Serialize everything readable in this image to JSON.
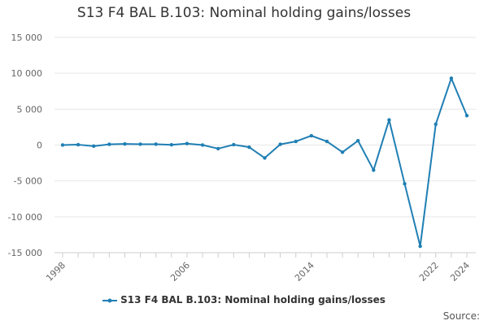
{
  "chart_data": {
    "type": "line",
    "title": "S13 F4 BAL B.103: Nominal holding gains/losses",
    "xlabel": "",
    "ylabel": "",
    "x": [
      1998,
      1999,
      2000,
      2001,
      2002,
      2003,
      2004,
      2005,
      2006,
      2007,
      2008,
      2009,
      2010,
      2011,
      2012,
      2013,
      2014,
      2015,
      2016,
      2017,
      2018,
      2019,
      2020,
      2021,
      2022,
      2023,
      2024
    ],
    "series": [
      {
        "name": "S13 F4 BAL B.103: Nominal holding gains/losses",
        "color": "#1f7fb4",
        "values": [
          0,
          50,
          -150,
          100,
          150,
          120,
          120,
          30,
          200,
          0,
          -500,
          50,
          -300,
          -1800,
          100,
          500,
          1300,
          500,
          -1000,
          600,
          -3500,
          3500,
          -5400,
          -14100,
          2900,
          9300,
          4100
        ]
      }
    ],
    "ylim": [
      -15000,
      15000
    ],
    "y_ticks": [
      15000,
      10000,
      5000,
      0,
      -5000,
      -10000,
      -15000
    ],
    "y_tick_labels": [
      "15 000",
      "10 000",
      "5 000",
      "0",
      "-5 000",
      "-10 000",
      "-15 000"
    ],
    "x_tick_labels": [
      "1998",
      "2006",
      "2014",
      "2022",
      "2024"
    ],
    "grid": true,
    "legend_position": "bottom",
    "source_label": "Source:"
  }
}
